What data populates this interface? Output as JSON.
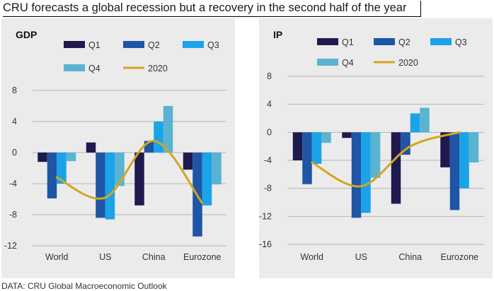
{
  "title": "CRU forecasts a global recession but a recovery in the second half of the year",
  "footer": "DATA: CRU Global Macroeconomic Outlook",
  "colors": {
    "q1": "#1f1a4d",
    "q2": "#1e55a5",
    "q3": "#1aa3e8",
    "q4": "#59b3d1",
    "line2020": "#d4a520",
    "panel_bg": "#ebebeb",
    "grid": "#b5b5b5"
  },
  "chart_data": [
    {
      "type": "bar",
      "title": "GDP",
      "categories": [
        "World",
        "US",
        "China",
        "Eurozone"
      ],
      "series": [
        {
          "name": "Q1",
          "values": [
            -1.2,
            1.3,
            -6.8,
            -2.2
          ]
        },
        {
          "name": "Q2",
          "values": [
            -5.9,
            -8.4,
            1.5,
            -10.8
          ]
        },
        {
          "name": "Q3",
          "values": [
            -4.0,
            -8.6,
            4.0,
            -6.8
          ]
        },
        {
          "name": "Q4",
          "values": [
            -1.1,
            -4.3,
            6.0,
            -4.1
          ]
        }
      ],
      "line": {
        "name": "2020",
        "values": [
          -3.2,
          -5.8,
          1.5,
          -6.5
        ]
      },
      "ylim": [
        -12,
        8
      ],
      "yticks": [
        8,
        4,
        0,
        -4,
        -8,
        -12
      ],
      "ytick_labels": [
        "8",
        "4",
        "0",
        "-4",
        "-8",
        "-12"
      ],
      "legend": "top",
      "grid": true
    },
    {
      "type": "bar",
      "title": "IP",
      "categories": [
        "World",
        "US",
        "China",
        "Eurozone"
      ],
      "series": [
        {
          "name": "Q1",
          "values": [
            -4.0,
            -0.8,
            -10.2,
            -5.0
          ]
        },
        {
          "name": "Q2",
          "values": [
            -7.4,
            -12.2,
            -3.2,
            -11.1
          ]
        },
        {
          "name": "Q3",
          "values": [
            -4.5,
            -11.5,
            2.7,
            -8.0
          ]
        },
        {
          "name": "Q4",
          "values": [
            -1.5,
            -6.5,
            3.5,
            -4.3
          ]
        }
      ],
      "line": {
        "name": "2020",
        "values": [
          -4.3,
          -7.7,
          -2.0,
          0.0
        ]
      },
      "ylim": [
        -16,
        8
      ],
      "yticks": [
        8,
        4,
        0,
        -4,
        -8,
        -12,
        -16
      ],
      "ytick_labels": [
        "8",
        "4",
        "0",
        "-4",
        "-8",
        "-12",
        "-16"
      ],
      "legend": "top",
      "grid": true
    }
  ]
}
